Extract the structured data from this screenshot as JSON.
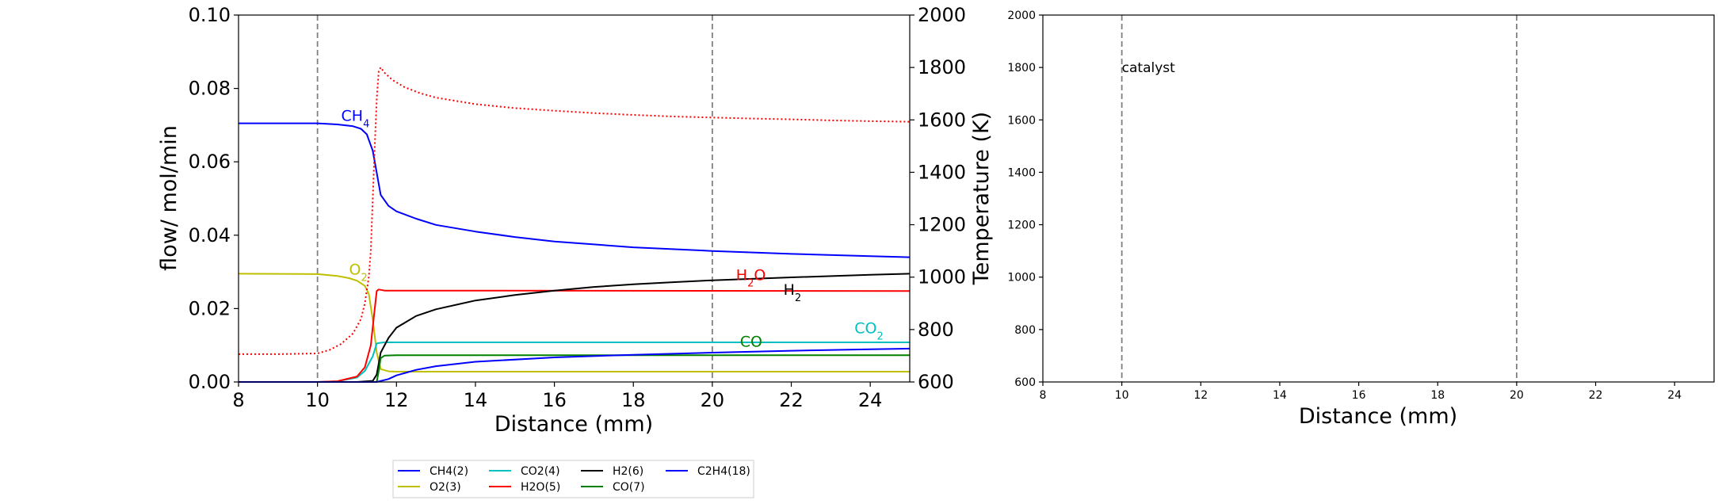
{
  "chart_data": [
    {
      "type": "line",
      "title": "",
      "xlabel": "Distance (mm)",
      "ylabel_left": "flow/ mol/min",
      "ylabel_right": "Temperature (K)",
      "xlim": [
        8,
        25
      ],
      "ylim_left": [
        0,
        0.1
      ],
      "ylim_right": [
        600,
        2000
      ],
      "xticks": [
        "8",
        "10",
        "12",
        "14",
        "16",
        "18",
        "20",
        "22",
        "24"
      ],
      "yticks_left": [
        "0.00",
        "0.02",
        "0.04",
        "0.06",
        "0.08",
        "0.10"
      ],
      "yticks_right": [
        "600",
        "800",
        "1000",
        "1200",
        "1400",
        "1600",
        "1800",
        "2000"
      ],
      "vlines": [
        10,
        20
      ],
      "grid": false,
      "legend_position": "below",
      "series": [
        {
          "name": "CH4(2)",
          "color": "#0000ff",
          "axis": "left",
          "style": "solid",
          "x": [
            8,
            10,
            10.5,
            10.9,
            11.1,
            11.25,
            11.4,
            11.5,
            11.6,
            11.7,
            11.8,
            12,
            12.5,
            13,
            14,
            15,
            16,
            18,
            20,
            22,
            24,
            25
          ],
          "y": [
            0.0705,
            0.0705,
            0.0702,
            0.0697,
            0.069,
            0.0675,
            0.063,
            0.057,
            0.051,
            0.0495,
            0.048,
            0.0465,
            0.0445,
            0.0428,
            0.041,
            0.0395,
            0.0383,
            0.0367,
            0.0357,
            0.0349,
            0.0343,
            0.034
          ]
        },
        {
          "name": "O2(3)",
          "color": "#bfbf00",
          "axis": "left",
          "style": "solid",
          "x": [
            8,
            10,
            10.5,
            10.8,
            11.0,
            11.2,
            11.3,
            11.4,
            11.5,
            11.6,
            11.8,
            12,
            25
          ],
          "y": [
            0.0295,
            0.0294,
            0.0289,
            0.0283,
            0.0276,
            0.0262,
            0.024,
            0.017,
            0.008,
            0.0035,
            0.0029,
            0.0028,
            0.0028
          ]
        },
        {
          "name": "CO2(4)",
          "color": "#00bfbf",
          "axis": "left",
          "style": "solid",
          "x": [
            8,
            10,
            10.5,
            11.0,
            11.2,
            11.4,
            11.5,
            11.6,
            11.7,
            12,
            25
          ],
          "y": [
            0.0,
            0.0,
            0.0002,
            0.0012,
            0.003,
            0.007,
            0.0105,
            0.0107,
            0.0108,
            0.0108,
            0.0108
          ]
        },
        {
          "name": "H2O(5)",
          "color": "#ff0000",
          "axis": "left",
          "style": "solid",
          "x": [
            8,
            10,
            10.5,
            11.0,
            11.2,
            11.35,
            11.45,
            11.5,
            11.55,
            11.7,
            12,
            25
          ],
          "y": [
            0.0,
            0.0,
            0.0002,
            0.0015,
            0.004,
            0.01,
            0.02,
            0.0248,
            0.0252,
            0.0249,
            0.0249,
            0.0248
          ]
        },
        {
          "name": "H2(6)",
          "color": "#000000",
          "axis": "left",
          "style": "solid",
          "x": [
            8,
            11.0,
            11.4,
            11.5,
            11.6,
            11.8,
            12,
            12.5,
            13,
            14,
            15,
            16,
            17,
            18,
            19,
            20,
            22,
            24,
            25
          ],
          "y": [
            0.0,
            0.0,
            0.0003,
            0.002,
            0.008,
            0.012,
            0.0148,
            0.018,
            0.0198,
            0.0222,
            0.0237,
            0.0249,
            0.0259,
            0.0266,
            0.0272,
            0.0277,
            0.0285,
            0.0292,
            0.0295
          ]
        },
        {
          "name": "CO(7)",
          "color": "#008000",
          "axis": "left",
          "style": "solid",
          "x": [
            8,
            11.5,
            11.55,
            11.6,
            11.7,
            12,
            25
          ],
          "y": [
            0.0,
            0.0,
            0.003,
            0.0065,
            0.0072,
            0.0073,
            0.0073
          ]
        },
        {
          "name": "C2H4(18)",
          "color": "#0000ff",
          "axis": "left",
          "style": "solid",
          "x": [
            8,
            11.5,
            11.8,
            12,
            12.5,
            13,
            14,
            16,
            18,
            20,
            22,
            24,
            25
          ],
          "y": [
            0.0,
            0.0,
            0.0008,
            0.0018,
            0.0033,
            0.0043,
            0.0055,
            0.0067,
            0.0074,
            0.008,
            0.0085,
            0.0089,
            0.0091
          ]
        },
        {
          "name": "Temperature",
          "color": "#ff0000",
          "axis": "right",
          "style": "dotted",
          "x": [
            8,
            9,
            10,
            10.3,
            10.6,
            10.9,
            11.1,
            11.2,
            11.3,
            11.35,
            11.4,
            11.45,
            11.5,
            11.55,
            11.6,
            11.7,
            11.9,
            12.2,
            12.6,
            13,
            14,
            15,
            16,
            17,
            18,
            19,
            20,
            21,
            22,
            23,
            24,
            25
          ],
          "y": [
            706,
            706,
            709,
            722,
            745,
            785,
            840,
            900,
            1000,
            1100,
            1300,
            1500,
            1680,
            1785,
            1800,
            1780,
            1752,
            1725,
            1702,
            1685,
            1660,
            1645,
            1635,
            1626,
            1619,
            1613,
            1609,
            1605,
            1602,
            1598,
            1595,
            1593
          ]
        }
      ],
      "annotations": [
        {
          "base": "CH",
          "sub": "4",
          "color": "#0000ff",
          "x": 10.6,
          "y": 0.0712
        },
        {
          "base": "O",
          "sub": "2",
          "color": "#bfbf00",
          "x": 10.8,
          "y": 0.0293
        },
        {
          "base": "H",
          "sub": "2",
          "tail": "O",
          "color": "#ff0000",
          "x": 20.6,
          "y": 0.0277
        },
        {
          "base": "H",
          "sub": "2",
          "color": "#000000",
          "x": 21.8,
          "y": 0.0238
        },
        {
          "base": "CO",
          "sub": "2",
          "color": "#00bfbf",
          "x": 23.6,
          "y": 0.0133
        },
        {
          "base": "CO",
          "sub": "",
          "color": "#008000",
          "x": 20.7,
          "y": 0.0096
        }
      ]
    },
    {
      "type": "line",
      "title": "",
      "xlabel": "Distance (mm)",
      "ylabel": "",
      "xlim": [
        8,
        25
      ],
      "ylim": [
        600,
        2000
      ],
      "xticks": [
        "8",
        "10",
        "12",
        "14",
        "16",
        "18",
        "20",
        "22",
        "24"
      ],
      "yticks": [
        "600",
        "800",
        "1000",
        "1200",
        "1400",
        "1600",
        "1800",
        "2000"
      ],
      "vlines": [
        10,
        20
      ],
      "series": [],
      "annotations": [
        {
          "text": "catalyst",
          "x": 10.0,
          "y": 1800
        }
      ]
    }
  ]
}
